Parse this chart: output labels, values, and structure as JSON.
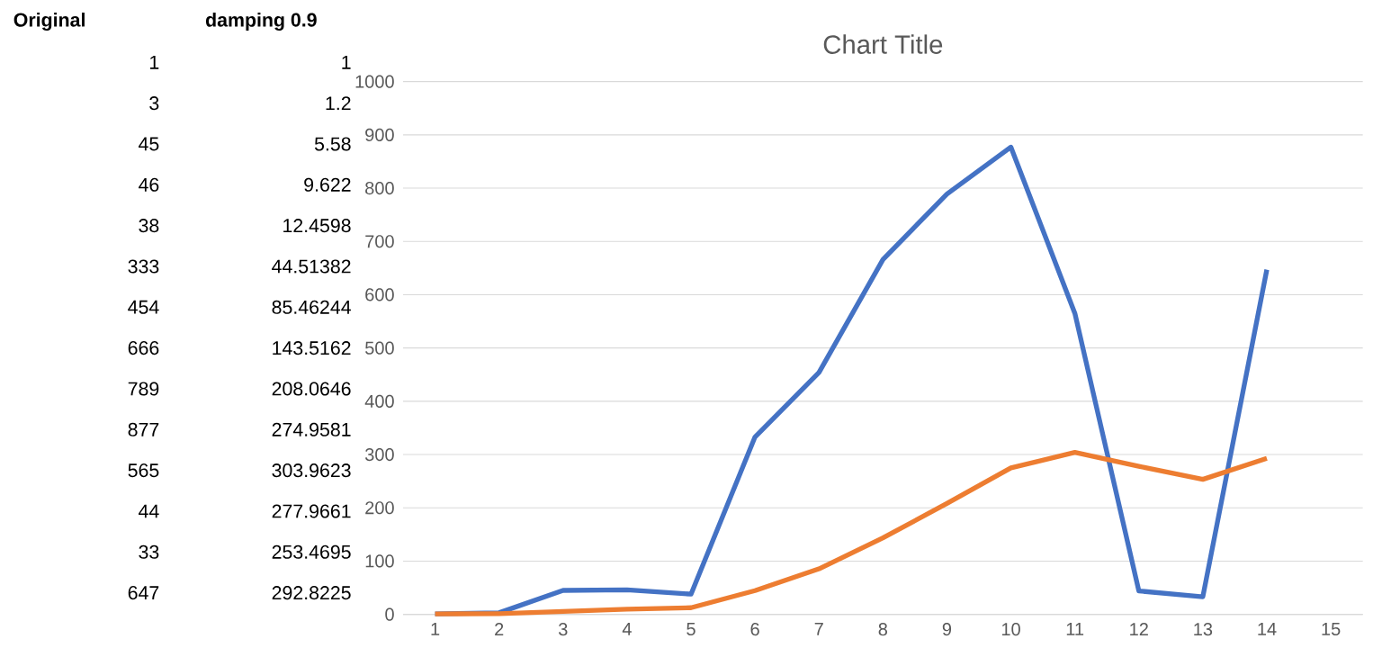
{
  "chart_data": [
    {
      "type": "line",
      "title": "Chart Title",
      "categories": [
        "1",
        "2",
        "3",
        "4",
        "5",
        "6",
        "7",
        "8",
        "9",
        "10",
        "11",
        "12",
        "13",
        "14",
        "15"
      ],
      "series": [
        {
          "color": "#4472c4",
          "values": [
            1,
            3,
            45,
            46,
            38,
            333,
            454,
            666,
            789,
            877,
            565,
            44,
            33,
            647,
            null
          ]
        },
        {
          "color": "#ed7d31",
          "values": [
            1,
            1.2,
            5.58,
            9.622,
            12.4598,
            44.51382,
            85.46244,
            143.5162,
            208.0646,
            274.9581,
            303.9623,
            277.9661,
            253.4695,
            292.8225,
            null
          ]
        }
      ],
      "ylim": [
        0,
        1000
      ],
      "yticks": [
        0,
        100,
        200,
        300,
        400,
        500,
        600,
        700,
        800,
        900,
        1000
      ],
      "grid": "y"
    },
    {
      "type": "other",
      "annotations": [
        "Original",
        "damping 0.9",
        "1",
        "1",
        "3",
        "1.2",
        "45",
        "5.58",
        "46",
        "9.622",
        "38",
        "12.4598",
        "333",
        "44.51382",
        "454",
        "85.46244",
        "666",
        "143.5162",
        "789",
        "208.0646",
        "877",
        "274.9581",
        "565",
        "303.9623",
        "44",
        "277.9661",
        "33",
        "253.4695",
        "647",
        "292.8225"
      ]
    }
  ]
}
